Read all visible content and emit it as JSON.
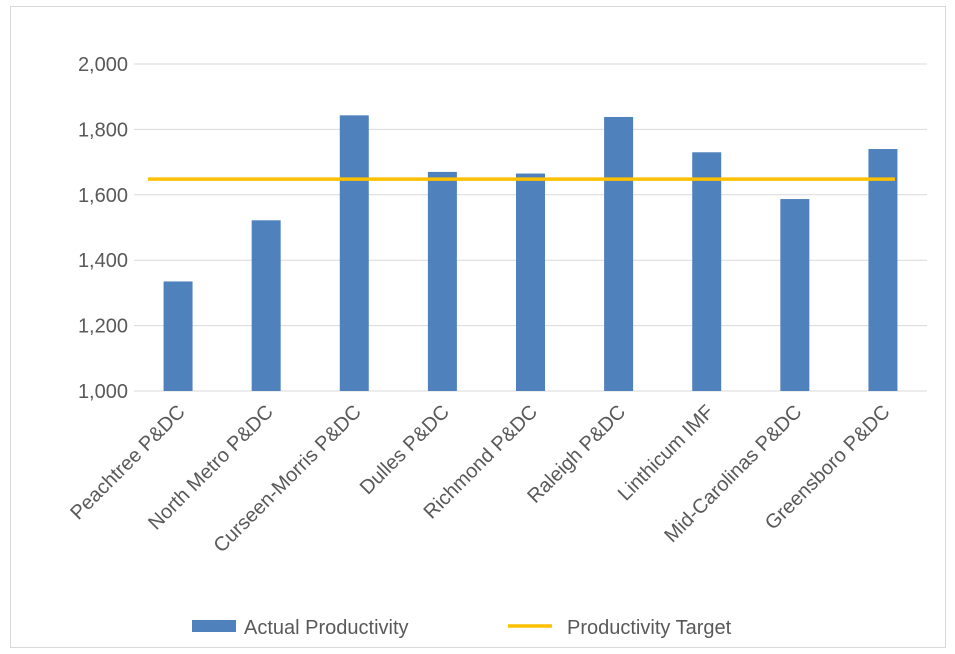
{
  "chart_data": {
    "type": "bar",
    "title": "",
    "xlabel": "",
    "ylabel": "",
    "categories": [
      "Peachtree P&DC",
      "North Metro P&DC",
      "Curseen-Morris P&DC",
      "Dulles P&DC",
      "Richmond P&DC",
      "Raleigh P&DC",
      "Linthicum IMF",
      "Mid-Carolinas P&DC",
      "Greensboro P&DC"
    ],
    "series": [
      {
        "name": "Actual Productivity",
        "type": "bar",
        "color": "#4f81bd",
        "values": [
          1335,
          1522,
          1843,
          1670,
          1665,
          1838,
          1730,
          1587,
          1740
        ]
      },
      {
        "name": "Productivity Target",
        "type": "line",
        "color": "#ffc000",
        "values": [
          1648,
          1648,
          1648,
          1648,
          1648,
          1648,
          1648,
          1648,
          1648
        ]
      }
    ],
    "ylim": [
      1000,
      2000
    ],
    "yticks": [
      "1,000",
      "1,200",
      "1,400",
      "1,600",
      "1,800",
      "2,000"
    ],
    "ytick_values": [
      1000,
      1200,
      1400,
      1600,
      1800,
      2000
    ],
    "grid": true,
    "legend": "bottom",
    "colors": {
      "grid": "#d9d9d9",
      "text": "#595959"
    }
  }
}
